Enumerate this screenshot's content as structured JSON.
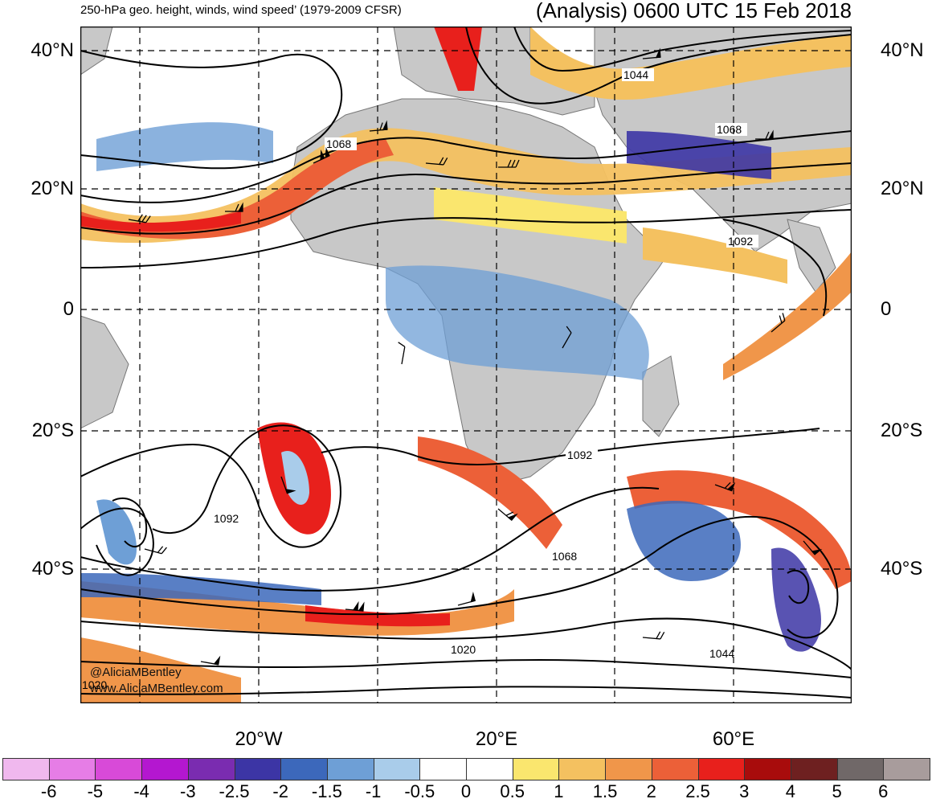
{
  "header": {
    "left_title": "250-hPa geo. height, winds, wind speed’ (1979-2009 CFSR)",
    "right_title": "(Analysis) 0600 UTC 15 Feb 2018"
  },
  "map": {
    "lat_labels": [
      "40°N",
      "20°N",
      "0",
      "20°S",
      "40°S"
    ],
    "lon_labels": [
      "20°W",
      "20°E",
      "60°E"
    ],
    "contour_labels": [
      "1044",
      "1068",
      "1068",
      "1092",
      "1092",
      "1092",
      "1068",
      "1020",
      "1044",
      "1020"
    ],
    "land_color": "#c8c8c8",
    "ocean_color": "#ffffff"
  },
  "credits": {
    "handle": "@AliciaMBentley",
    "website": "www.AliciaMBentley.com"
  },
  "colorbar": {
    "labels": [
      "-6",
      "-5",
      "-4",
      "-3",
      "-2.5",
      "-2",
      "-1.5",
      "-1",
      "-0.5",
      "0",
      "0.5",
      "1",
      "1.5",
      "2",
      "2.5",
      "3",
      "4",
      "5",
      "6"
    ],
    "colors": [
      "#f0b8ee",
      "#e67de6",
      "#d84ad8",
      "#b417d0",
      "#7a2cb0",
      "#3c35a5",
      "#3c68bb",
      "#6e9fd6",
      "#a9ccea",
      "#ffffff",
      "#ffffff",
      "#fae66e",
      "#f4c160",
      "#f0964a",
      "#ec6038",
      "#e8201c",
      "#a80c0c",
      "#6e2020",
      "#706868",
      "#a89c9c"
    ]
  }
}
